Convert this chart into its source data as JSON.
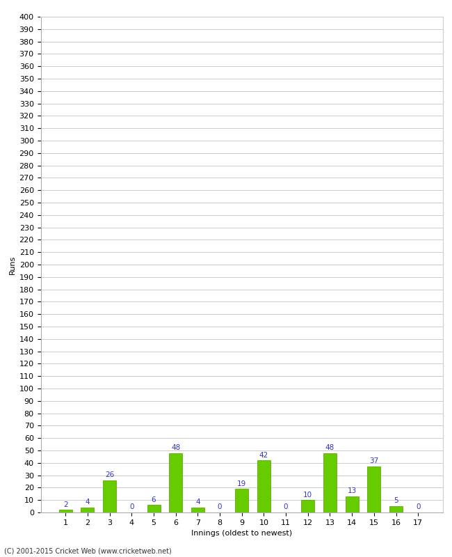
{
  "title": "",
  "xlabel": "Innings (oldest to newest)",
  "ylabel": "Runs",
  "categories": [
    1,
    2,
    3,
    4,
    5,
    6,
    7,
    8,
    9,
    10,
    11,
    12,
    13,
    14,
    15,
    16,
    17
  ],
  "values": [
    2,
    4,
    26,
    0,
    6,
    48,
    4,
    0,
    19,
    42,
    0,
    10,
    48,
    13,
    37,
    5,
    0
  ],
  "bar_color": "#66cc00",
  "bar_edge_color": "#559900",
  "label_color": "#3333cc",
  "background_color": "#ffffff",
  "grid_color": "#cccccc",
  "ytick_step": 10,
  "ymax": 400,
  "footnote": "(C) 2001-2015 Cricket Web (www.cricketweb.net)",
  "label_fontsize": 7.5,
  "axis_tick_fontsize": 8,
  "xlabel_fontsize": 8,
  "ylabel_fontsize": 8,
  "footnote_fontsize": 7
}
